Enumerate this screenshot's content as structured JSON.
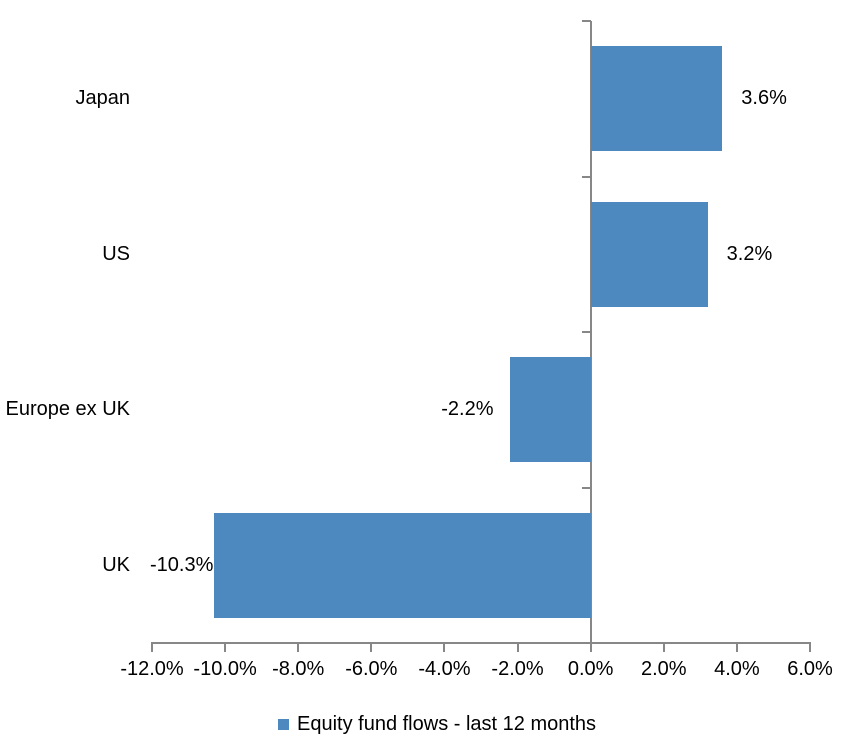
{
  "chart_data": {
    "type": "bar",
    "orientation": "horizontal",
    "title": "",
    "categories": [
      "Japan",
      "US",
      "Europe ex UK",
      "UK"
    ],
    "values": [
      3.6,
      3.2,
      -2.2,
      -10.3
    ],
    "data_labels": [
      "3.6%",
      "3.2%",
      "-2.2%",
      "-10.3%"
    ],
    "series_name": "Equity fund flows - last 12 months",
    "xlabel": "",
    "ylabel": "",
    "xlim": [
      -12,
      6
    ],
    "x_tick_step": 2,
    "x_tick_labels": [
      "-12.0%",
      "-10.0%",
      "-8.0%",
      "-6.0%",
      "-4.0%",
      "-2.0%",
      "0.0%",
      "2.0%",
      "4.0%",
      "6.0%"
    ],
    "grid": false,
    "legend_position": "bottom",
    "colors": {
      "bar": "#4D89BE",
      "axis": "#878787",
      "text": "#000000",
      "background": "#FFFFFF"
    }
  },
  "legend": {
    "marker_icon": "square-icon",
    "label": "Equity fund flows - last 12 months"
  }
}
